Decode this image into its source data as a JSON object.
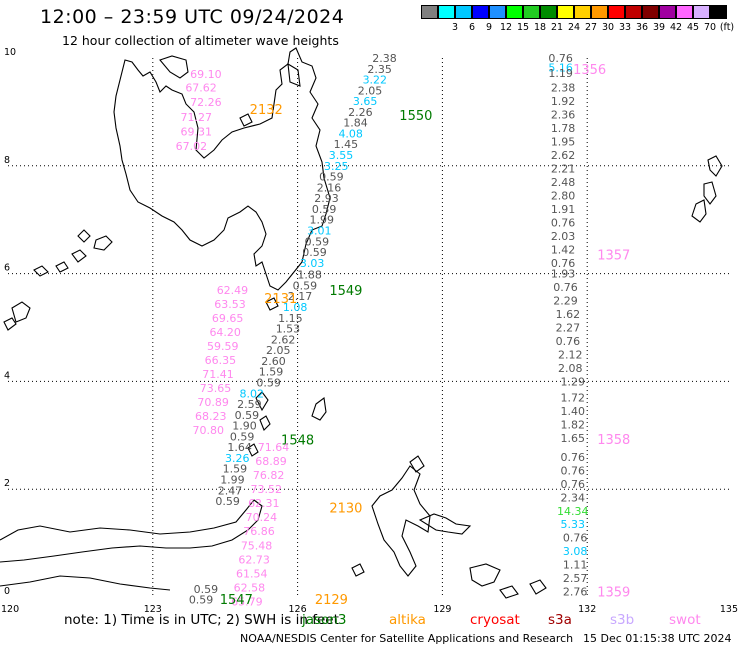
{
  "header": {
    "title": "12:00 – 23:59 UTC 09/24/2024",
    "subtitle": "12 hour collection of altimeter wave heights"
  },
  "legend": {
    "items": [
      {
        "color": "#808080",
        "label": ""
      },
      {
        "color": "#00ffff",
        "label": "3"
      },
      {
        "color": "#00c8ff",
        "label": "6"
      },
      {
        "color": "#0000ff",
        "label": "9"
      },
      {
        "color": "#1e90ff",
        "label": "12"
      },
      {
        "color": "#00ff00",
        "label": "15"
      },
      {
        "color": "#22cc22",
        "label": "18"
      },
      {
        "color": "#008c00",
        "label": "21"
      },
      {
        "color": "#ffff00",
        "label": "24"
      },
      {
        "color": "#ffd000",
        "label": "27"
      },
      {
        "color": "#ff9900",
        "label": "30"
      },
      {
        "color": "#ff0000",
        "label": "33"
      },
      {
        "color": "#c00000",
        "label": "36"
      },
      {
        "color": "#800000",
        "label": "39"
      },
      {
        "color": "#a000a0",
        "label": "42"
      },
      {
        "color": "#ff66ff",
        "label": "45"
      },
      {
        "color": "#d8b0ff",
        "label": "70"
      },
      {
        "color": "#000000",
        "label": "(ft)"
      }
    ]
  },
  "map": {
    "lat_range": [
      0,
      10
    ],
    "lon_range": [
      120,
      135
    ],
    "lon_ticks": [
      "120",
      "123",
      "126",
      "129",
      "132",
      "135"
    ],
    "lat_ticks": [
      "0",
      "2",
      "4",
      "6",
      "8",
      "10"
    ],
    "colors": {
      "coast": "#000000",
      "grid": "#000000",
      "grey": "#555555",
      "cyan": "#00c8ff",
      "pink": "#ff88ee",
      "green": "#007a00",
      "orange": "#ff9900",
      "lime": "#33dd33"
    }
  },
  "tracks": [
    {
      "id": "2132",
      "satellite": "altika",
      "label_color": "orange",
      "label_lon": 125.35,
      "label_lat": 9.05,
      "values": [
        {
          "text": "69.10",
          "lon": 124.1,
          "lat": 9.7,
          "color": "pink"
        },
        {
          "text": "67.62",
          "lon": 124.0,
          "lat": 9.45,
          "color": "pink"
        },
        {
          "text": "72.26",
          "lon": 124.1,
          "lat": 9.18,
          "color": "pink"
        },
        {
          "text": "71.27",
          "lon": 123.9,
          "lat": 8.91,
          "color": "pink"
        },
        {
          "text": "69.31",
          "lon": 123.9,
          "lat": 8.64,
          "color": "pink"
        },
        {
          "text": "67.02",
          "lon": 123.8,
          "lat": 8.37,
          "color": "pink"
        }
      ]
    },
    {
      "id": "1550",
      "satellite": "jason3",
      "label_color": "green",
      "label_lon": 128.45,
      "label_lat": 8.94,
      "values": [
        {
          "text": "2.38",
          "lon": 127.8,
          "lat": 10.0,
          "color": "grey"
        },
        {
          "text": "2.35",
          "lon": 127.7,
          "lat": 9.8,
          "color": "grey"
        },
        {
          "text": "3.22",
          "lon": 127.6,
          "lat": 9.6,
          "color": "cyan"
        },
        {
          "text": "2.05",
          "lon": 127.5,
          "lat": 9.4,
          "color": "grey"
        },
        {
          "text": "3.65",
          "lon": 127.4,
          "lat": 9.2,
          "color": "cyan"
        },
        {
          "text": "2.26",
          "lon": 127.3,
          "lat": 9.0,
          "color": "grey"
        },
        {
          "text": "1.84",
          "lon": 127.2,
          "lat": 8.8,
          "color": "grey"
        },
        {
          "text": "4.08",
          "lon": 127.1,
          "lat": 8.6,
          "color": "cyan"
        },
        {
          "text": "1.45",
          "lon": 127.0,
          "lat": 8.4,
          "color": "grey"
        },
        {
          "text": "3.55",
          "lon": 126.9,
          "lat": 8.2,
          "color": "cyan"
        },
        {
          "text": "3.25",
          "lon": 126.8,
          "lat": 8.0,
          "color": "cyan"
        },
        {
          "text": "0.59",
          "lon": 126.7,
          "lat": 7.8,
          "color": "grey"
        },
        {
          "text": "2.16",
          "lon": 126.65,
          "lat": 7.6,
          "color": "grey"
        },
        {
          "text": "2.93",
          "lon": 126.6,
          "lat": 7.4,
          "color": "grey"
        },
        {
          "text": "0.59",
          "lon": 126.55,
          "lat": 7.2,
          "color": "grey"
        },
        {
          "text": "1.99",
          "lon": 126.5,
          "lat": 7.0,
          "color": "grey"
        },
        {
          "text": "3.01",
          "lon": 126.45,
          "lat": 6.8,
          "color": "cyan"
        },
        {
          "text": "0.59",
          "lon": 126.4,
          "lat": 6.6,
          "color": "grey"
        },
        {
          "text": "0.59",
          "lon": 126.35,
          "lat": 6.4,
          "color": "grey"
        },
        {
          "text": "3.03",
          "lon": 126.3,
          "lat": 6.2,
          "color": "cyan"
        }
      ]
    },
    {
      "id": "1549",
      "satellite": "jason3",
      "label_color": "green",
      "label_lon": 127.0,
      "label_lat": 5.7,
      "values": [
        {
          "text": "1.88",
          "lon": 126.25,
          "lat": 5.98,
          "color": "grey"
        },
        {
          "text": "0.59",
          "lon": 126.15,
          "lat": 5.78,
          "color": "grey"
        },
        {
          "text": "2.17",
          "lon": 126.05,
          "lat": 5.58,
          "color": "grey"
        },
        {
          "text": "1.08",
          "lon": 125.95,
          "lat": 5.38,
          "color": "cyan"
        },
        {
          "text": "1.15",
          "lon": 125.85,
          "lat": 5.18,
          "color": "grey"
        },
        {
          "text": "1.53",
          "lon": 125.8,
          "lat": 4.98,
          "color": "grey"
        },
        {
          "text": "2.62",
          "lon": 125.7,
          "lat": 4.78,
          "color": "grey"
        },
        {
          "text": "2.05",
          "lon": 125.6,
          "lat": 4.58,
          "color": "grey"
        },
        {
          "text": "2.60",
          "lon": 125.5,
          "lat": 4.38,
          "color": "grey"
        },
        {
          "text": "1.59",
          "lon": 125.45,
          "lat": 4.18,
          "color": "grey"
        },
        {
          "text": "0.59",
          "lon": 125.4,
          "lat": 3.98,
          "color": "grey"
        }
      ]
    },
    {
      "id": "2131",
      "satellite": "altika",
      "label_color": "orange",
      "label_lon": 125.65,
      "label_lat": 5.55,
      "values": [
        {
          "text": "62.49",
          "lon": 124.65,
          "lat": 5.7,
          "color": "pink"
        },
        {
          "text": "63.53",
          "lon": 124.6,
          "lat": 5.44,
          "color": "pink"
        },
        {
          "text": "69.65",
          "lon": 124.55,
          "lat": 5.18,
          "color": "pink"
        },
        {
          "text": "64.20",
          "lon": 124.5,
          "lat": 4.92,
          "color": "pink"
        },
        {
          "text": "59.59",
          "lon": 124.45,
          "lat": 4.66,
          "color": "pink"
        },
        {
          "text": "66.35",
          "lon": 124.4,
          "lat": 4.4,
          "color": "pink"
        },
        {
          "text": "71.41",
          "lon": 124.35,
          "lat": 4.14,
          "color": "pink"
        },
        {
          "text": "73.65",
          "lon": 124.3,
          "lat": 3.88,
          "color": "pink"
        },
        {
          "text": "70.89",
          "lon": 124.25,
          "lat": 3.62,
          "color": "pink"
        },
        {
          "text": "68.23",
          "lon": 124.2,
          "lat": 3.36,
          "color": "pink"
        },
        {
          "text": "70.80",
          "lon": 124.15,
          "lat": 3.1,
          "color": "pink"
        }
      ]
    },
    {
      "id": "1548",
      "satellite": "jason3",
      "label_color": "green",
      "label_lon": 126.0,
      "label_lat": 2.92,
      "values": [
        {
          "text": "8.02",
          "lon": 125.05,
          "lat": 3.78,
          "color": "cyan"
        },
        {
          "text": "2.59",
          "lon": 125.0,
          "lat": 3.58,
          "color": "grey"
        },
        {
          "text": "0.59",
          "lon": 124.95,
          "lat": 3.38,
          "color": "grey"
        },
        {
          "text": "1.90",
          "lon": 124.9,
          "lat": 3.18,
          "color": "grey"
        },
        {
          "text": "0.59",
          "lon": 124.85,
          "lat": 2.98,
          "color": "grey"
        },
        {
          "text": "1.64",
          "lon": 124.8,
          "lat": 2.78,
          "color": "grey"
        },
        {
          "text": "3.26",
          "lon": 124.75,
          "lat": 2.58,
          "color": "cyan"
        },
        {
          "text": "1.59",
          "lon": 124.7,
          "lat": 2.38,
          "color": "grey"
        },
        {
          "text": "1.99",
          "lon": 124.65,
          "lat": 2.18,
          "color": "grey"
        },
        {
          "text": "2.47",
          "lon": 124.6,
          "lat": 1.98,
          "color": "grey"
        },
        {
          "text": "0.59",
          "lon": 124.55,
          "lat": 1.78,
          "color": "grey"
        }
      ]
    },
    {
      "id": "2130",
      "satellite": "altika",
      "label_color": "orange",
      "label_lon": 127.0,
      "label_lat": 1.66,
      "values": [
        {
          "text": "71.64",
          "lon": 125.5,
          "lat": 2.78,
          "color": "pink"
        },
        {
          "text": "68.89",
          "lon": 125.45,
          "lat": 2.52,
          "color": "pink"
        },
        {
          "text": "76.82",
          "lon": 125.4,
          "lat": 2.26,
          "color": "pink"
        },
        {
          "text": "73.52",
          "lon": 125.35,
          "lat": 2.0,
          "color": "pink"
        },
        {
          "text": "62.31",
          "lon": 125.3,
          "lat": 1.74,
          "color": "pink"
        },
        {
          "text": "70.24",
          "lon": 125.25,
          "lat": 1.48,
          "color": "pink"
        },
        {
          "text": "76.86",
          "lon": 125.2,
          "lat": 1.22,
          "color": "pink"
        },
        {
          "text": "75.48",
          "lon": 125.15,
          "lat": 0.96,
          "color": "pink"
        },
        {
          "text": "62.73",
          "lon": 125.1,
          "lat": 0.7,
          "color": "pink"
        },
        {
          "text": "61.54",
          "lon": 125.05,
          "lat": 0.44,
          "color": "pink"
        },
        {
          "text": "62.58",
          "lon": 125.0,
          "lat": 0.18,
          "color": "pink"
        },
        {
          "text": "65.79",
          "lon": 124.95,
          "lat": -0.08,
          "color": "pink"
        }
      ]
    },
    {
      "id": "1547",
      "satellite": "jason3",
      "label_color": "green",
      "label_lon": 124.73,
      "label_lat": -0.04,
      "values": [
        {
          "text": "0.59",
          "lon": 124.1,
          "lat": 0.15,
          "color": "grey"
        },
        {
          "text": "0.59",
          "lon": 124.0,
          "lat": -0.05,
          "color": "grey"
        }
      ]
    },
    {
      "id": "2129",
      "satellite": "altika",
      "label_color": "orange",
      "label_lon": 126.7,
      "label_lat": -0.04,
      "values": []
    },
    {
      "id": "1356",
      "satellite": "swot",
      "label_color": "pink",
      "label_lon": 132.05,
      "label_lat": 9.8,
      "values": [
        {
          "text": "0.76",
          "lon": 131.45,
          "lat": 10.0,
          "color": "grey"
        },
        {
          "text": "5.16",
          "lon": 131.45,
          "lat": 9.82,
          "color": "cyan"
        },
        {
          "text": "1.19",
          "lon": 131.45,
          "lat": 9.72,
          "color": "grey"
        }
      ]
    },
    {
      "id": "1357",
      "satellite": "swot",
      "label_color": "pink",
      "label_lon": 132.55,
      "label_lat": 6.35,
      "values": [
        {
          "text": "2.38",
          "lon": 131.5,
          "lat": 9.45,
          "color": "grey"
        },
        {
          "text": "1.92",
          "lon": 131.5,
          "lat": 9.2,
          "color": "grey"
        },
        {
          "text": "2.36",
          "lon": 131.5,
          "lat": 8.95,
          "color": "grey"
        },
        {
          "text": "1.78",
          "lon": 131.5,
          "lat": 8.7,
          "color": "grey"
        },
        {
          "text": "1.95",
          "lon": 131.5,
          "lat": 8.45,
          "color": "grey"
        },
        {
          "text": "2.62",
          "lon": 131.5,
          "lat": 8.2,
          "color": "grey"
        },
        {
          "text": "2.21",
          "lon": 131.5,
          "lat": 7.95,
          "color": "grey"
        },
        {
          "text": "2.48",
          "lon": 131.5,
          "lat": 7.7,
          "color": "grey"
        },
        {
          "text": "2.80",
          "lon": 131.5,
          "lat": 7.45,
          "color": "grey"
        },
        {
          "text": "1.91",
          "lon": 131.5,
          "lat": 7.2,
          "color": "grey"
        },
        {
          "text": "0.76",
          "lon": 131.5,
          "lat": 6.95,
          "color": "grey"
        },
        {
          "text": "2.03",
          "lon": 131.5,
          "lat": 6.7,
          "color": "grey"
        },
        {
          "text": "1.42",
          "lon": 131.5,
          "lat": 6.45,
          "color": "grey"
        },
        {
          "text": "0.76",
          "lon": 131.5,
          "lat": 6.2,
          "color": "grey"
        }
      ]
    },
    {
      "id": "1358",
      "satellite": "swot",
      "label_color": "pink",
      "label_lon": 132.55,
      "label_lat": 2.93,
      "values": [
        {
          "text": "1.93",
          "lon": 131.5,
          "lat": 6.0,
          "color": "grey"
        },
        {
          "text": "0.76",
          "lon": 131.55,
          "lat": 5.75,
          "color": "grey"
        },
        {
          "text": "2.29",
          "lon": 131.55,
          "lat": 5.5,
          "color": "grey"
        },
        {
          "text": "1.62",
          "lon": 131.6,
          "lat": 5.25,
          "color": "grey"
        },
        {
          "text": "2.27",
          "lon": 131.6,
          "lat": 5.0,
          "color": "grey"
        },
        {
          "text": "0.76",
          "lon": 131.6,
          "lat": 4.75,
          "color": "grey"
        },
        {
          "text": "2.12",
          "lon": 131.65,
          "lat": 4.5,
          "color": "grey"
        },
        {
          "text": "2.08",
          "lon": 131.65,
          "lat": 4.25,
          "color": "grey"
        },
        {
          "text": "1.29",
          "lon": 131.7,
          "lat": 4.0,
          "color": "grey"
        },
        {
          "text": "1.72",
          "lon": 131.7,
          "lat": 3.7,
          "color": "grey"
        },
        {
          "text": "1.40",
          "lon": 131.7,
          "lat": 3.45,
          "color": "grey"
        },
        {
          "text": "1.82",
          "lon": 131.7,
          "lat": 3.2,
          "color": "grey"
        },
        {
          "text": "1.65",
          "lon": 131.7,
          "lat": 2.95,
          "color": "grey"
        }
      ]
    },
    {
      "id": "1359",
      "satellite": "swot",
      "label_color": "pink",
      "label_lon": 132.55,
      "label_lat": 0.1,
      "values": [
        {
          "text": "0.76",
          "lon": 131.7,
          "lat": 2.6,
          "color": "grey"
        },
        {
          "text": "0.76",
          "lon": 131.7,
          "lat": 2.35,
          "color": "grey"
        },
        {
          "text": "0.76",
          "lon": 131.7,
          "lat": 2.1,
          "color": "grey"
        },
        {
          "text": "2.34",
          "lon": 131.7,
          "lat": 1.85,
          "color": "grey"
        },
        {
          "text": "14.34",
          "lon": 131.7,
          "lat": 1.6,
          "color": "lime"
        },
        {
          "text": "5.33",
          "lon": 131.7,
          "lat": 1.35,
          "color": "cyan"
        },
        {
          "text": "0.76",
          "lon": 131.75,
          "lat": 1.1,
          "color": "grey"
        },
        {
          "text": "3.08",
          "lon": 131.75,
          "lat": 0.85,
          "color": "cyan"
        },
        {
          "text": "1.11",
          "lon": 131.75,
          "lat": 0.6,
          "color": "grey"
        },
        {
          "text": "2.57",
          "lon": 131.75,
          "lat": 0.35,
          "color": "grey"
        },
        {
          "text": "2.76",
          "lon": 131.75,
          "lat": 0.1,
          "color": "grey"
        }
      ]
    }
  ],
  "footer": {
    "note_prefix": "note:",
    "note_text": "1) Time is in UTC;  2) SWH is in feet",
    "satellites": [
      {
        "name": "jason3",
        "color": "#007a00"
      },
      {
        "name": "altika",
        "color": "#ff9900"
      },
      {
        "name": "cryosat",
        "color": "#ff0000"
      },
      {
        "name": "s3a",
        "color": "#a00000"
      },
      {
        "name": "s3b",
        "color": "#c8a8ff"
      },
      {
        "name": "swot",
        "color": "#ff88ee"
      }
    ],
    "org": "NOAA/NESDIS Center for Satellite Applications and Research",
    "date": "15 Dec 01:15:38 UTC 2024"
  }
}
